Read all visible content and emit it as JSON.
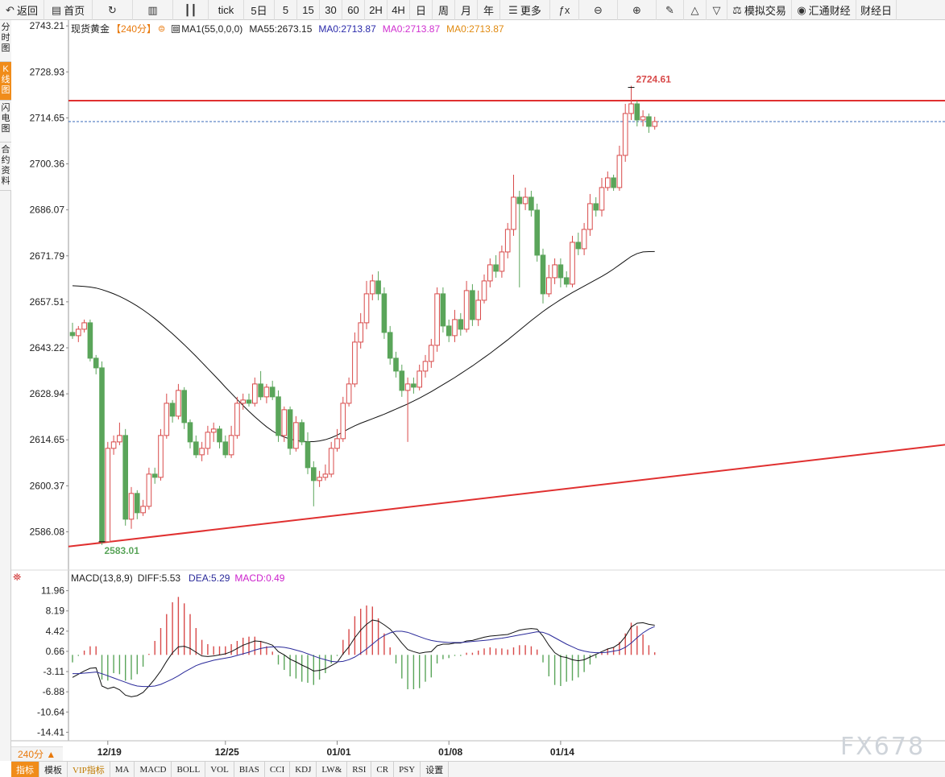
{
  "toolbar": {
    "items": [
      {
        "icon": "back-icon",
        "glyph": "↶",
        "label": "返回",
        "w": 55
      },
      {
        "icon": "home-icon",
        "glyph": "▤",
        "label": "首页",
        "w": 60
      },
      {
        "icon": "refresh-icon",
        "glyph": "↻",
        "label": "",
        "w": 50
      },
      {
        "icon": "bar-chart-icon",
        "glyph": "▥",
        "label": "",
        "w": 50
      },
      {
        "icon": "candlestick-icon",
        "glyph": "┃┃",
        "label": "",
        "w": 44
      },
      {
        "icon": "",
        "glyph": "",
        "label": "tick",
        "w": 44
      },
      {
        "icon": "",
        "glyph": "",
        "label": "5日",
        "w": 38
      },
      {
        "icon": "",
        "glyph": "",
        "label": "5",
        "w": 28
      },
      {
        "icon": "",
        "glyph": "",
        "label": "15",
        "w": 28
      },
      {
        "icon": "",
        "glyph": "",
        "label": "30",
        "w": 28
      },
      {
        "icon": "",
        "glyph": "",
        "label": "60",
        "w": 28
      },
      {
        "icon": "",
        "glyph": "",
        "label": "2H",
        "w": 28
      },
      {
        "icon": "",
        "glyph": "",
        "label": "4H",
        "w": 28
      },
      {
        "icon": "",
        "glyph": "",
        "label": "日",
        "w": 28
      },
      {
        "icon": "",
        "glyph": "",
        "label": "周",
        "w": 28
      },
      {
        "icon": "",
        "glyph": "",
        "label": "月",
        "w": 28
      },
      {
        "icon": "",
        "glyph": "",
        "label": "年",
        "w": 28
      },
      {
        "icon": "menu-icon",
        "glyph": "☰",
        "label": "更多",
        "w": 62
      },
      {
        "icon": "formula-icon",
        "glyph": "ƒx",
        "label": "",
        "w": 36
      },
      {
        "icon": "zoom-out-icon",
        "glyph": "⊖",
        "label": "",
        "w": 48
      },
      {
        "icon": "zoom-in-icon",
        "glyph": "⊕",
        "label": "",
        "w": 48
      },
      {
        "icon": "draw-line-icon",
        "glyph": "✎",
        "label": "",
        "w": 34
      },
      {
        "icon": "triangle-up-icon",
        "glyph": "△",
        "label": "",
        "w": 28
      },
      {
        "icon": "triangle-down-icon",
        "glyph": "▽",
        "label": "",
        "w": 26
      },
      {
        "icon": "simulated-trade-icon",
        "glyph": "⚖",
        "label": "模拟交易",
        "w": 80
      },
      {
        "icon": "news-icon",
        "glyph": "◉",
        "label": "汇通财经",
        "w": 80
      },
      {
        "icon": "",
        "glyph": "",
        "label": "财经日",
        "w": 50
      }
    ]
  },
  "left_tabs": [
    {
      "label": "分时图",
      "active": false
    },
    {
      "label": "K线图",
      "active": true
    },
    {
      "label": "闪电图",
      "active": false
    },
    {
      "label": "合约资料",
      "active": false
    }
  ],
  "legend": {
    "symbol": "现货黄金",
    "period": "【240分】",
    "ma_params": "MA1(55,0,0,0)",
    "ma55": "MA55:2673.15",
    "ma0_a": "MA0:2713.87",
    "ma0_b": "MA0:2713.87",
    "ma0_c": "MA0:2713.87"
  },
  "macd_legend": {
    "title": "MACD(13,8,9)",
    "diff": "DIFF:5.53",
    "dea": "DEA:5.29",
    "macd": "MACD:0.49"
  },
  "bottom_tabs": [
    "指标",
    "模板",
    "VIP指标",
    "MA",
    "MACD",
    "BOLL",
    "VOL",
    "BIAS",
    "CCI",
    "KDJ",
    "LW&",
    "RSI",
    "CR",
    "PSY",
    "设置"
  ],
  "period_selector": "240分 ▲",
  "watermark": "FX678",
  "colors": {
    "up": "#d84a4a",
    "down": "#5aa55a",
    "red_line": "#e03030",
    "ma": "#111111",
    "dea": "#2a2a9a",
    "macd_label": "#cc22cc",
    "accent": "#f08c1a"
  },
  "chart_data": {
    "type": "candlestick",
    "symbol": "现货黄金",
    "y_ticks": [
      "2743.21",
      "2728.93",
      "2714.65",
      "2700.36",
      "2686.07",
      "2671.79",
      "2657.51",
      "2643.22",
      "2628.94",
      "2614.65",
      "2600.37",
      "2586.08"
    ],
    "x_ticks": [
      "12/19",
      "12/25",
      "01/01",
      "01/08",
      "01/14"
    ],
    "ylim": [
      2578.7,
      2745
    ],
    "high_label": "2724.61",
    "low_label": "2583.01",
    "horizontal_line": 2720.0,
    "last_price_line": 2713.5,
    "trendline": {
      "from": [
        0,
        2581.5
      ],
      "to": [
        263,
        2637.5
      ]
    },
    "candles": [
      [
        2648,
        2647,
        2651,
        2646
      ],
      [
        2647,
        2649,
        2650,
        2645
      ],
      [
        2649,
        2651,
        2652,
        2648
      ],
      [
        2651,
        2640,
        2652,
        2639
      ],
      [
        2640,
        2637,
        2641,
        2635
      ],
      [
        2637,
        2583,
        2639,
        2582
      ],
      [
        2583,
        2612,
        2614,
        2583
      ],
      [
        2612,
        2614,
        2616,
        2610
      ],
      [
        2614,
        2616,
        2620,
        2613
      ],
      [
        2616,
        2590,
        2618,
        2588
      ],
      [
        2590,
        2598,
        2600,
        2587
      ],
      [
        2598,
        2592,
        2599,
        2590
      ],
      [
        2592,
        2594,
        2596,
        2591
      ],
      [
        2594,
        2604,
        2606,
        2593
      ],
      [
        2604,
        2603,
        2606,
        2601
      ],
      [
        2603,
        2616,
        2618,
        2602
      ],
      [
        2616,
        2626,
        2629,
        2615
      ],
      [
        2626,
        2622,
        2627,
        2620
      ],
      [
        2622,
        2630,
        2632,
        2621
      ],
      [
        2630,
        2620,
        2631,
        2618
      ],
      [
        2620,
        2614,
        2621,
        2612
      ],
      [
        2614,
        2610,
        2616,
        2609
      ],
      [
        2610,
        2612,
        2614,
        2608
      ],
      [
        2612,
        2617,
        2619,
        2610
      ],
      [
        2617,
        2618,
        2620,
        2614
      ],
      [
        2618,
        2614,
        2619,
        2612
      ],
      [
        2614,
        2610,
        2616,
        2609
      ],
      [
        2610,
        2616,
        2619,
        2609
      ],
      [
        2616,
        2626,
        2628,
        2615
      ],
      [
        2626,
        2627,
        2629,
        2624
      ],
      [
        2627,
        2626,
        2629,
        2625
      ],
      [
        2626,
        2632,
        2634,
        2625
      ],
      [
        2632,
        2628,
        2636,
        2627
      ],
      [
        2628,
        2631,
        2632,
        2626
      ],
      [
        2631,
        2628,
        2633,
        2627
      ],
      [
        2628,
        2616,
        2630,
        2614
      ],
      [
        2616,
        2624,
        2625,
        2614
      ],
      [
        2624,
        2612,
        2625,
        2610
      ],
      [
        2612,
        2620,
        2622,
        2611
      ],
      [
        2620,
        2614,
        2621,
        2613
      ],
      [
        2614,
        2606,
        2617,
        2604
      ],
      [
        2606,
        2602,
        2608,
        2594
      ],
      [
        2602,
        2603,
        2605,
        2600
      ],
      [
        2603,
        2604,
        2607,
        2602
      ],
      [
        2604,
        2612,
        2614,
        2603
      ],
      [
        2612,
        2615,
        2618,
        2611
      ],
      [
        2615,
        2626,
        2628,
        2614
      ],
      [
        2626,
        2632,
        2634,
        2625
      ],
      [
        2632,
        2645,
        2648,
        2631
      ],
      [
        2645,
        2651,
        2654,
        2643
      ],
      [
        2651,
        2660,
        2664,
        2649
      ],
      [
        2660,
        2664,
        2666,
        2658
      ],
      [
        2664,
        2660,
        2667,
        2658
      ],
      [
        2660,
        2648,
        2662,
        2646
      ],
      [
        2648,
        2640,
        2650,
        2638
      ],
      [
        2640,
        2636,
        2642,
        2634
      ],
      [
        2636,
        2630,
        2638,
        2628
      ],
      [
        2630,
        2632,
        2634,
        2614
      ],
      [
        2632,
        2631,
        2634,
        2629
      ],
      [
        2631,
        2636,
        2638,
        2630
      ],
      [
        2636,
        2639,
        2641,
        2634
      ],
      [
        2639,
        2644,
        2646,
        2637
      ],
      [
        2644,
        2660,
        2662,
        2642
      ],
      [
        2660,
        2650,
        2662,
        2648
      ],
      [
        2650,
        2647,
        2652,
        2645
      ],
      [
        2647,
        2652,
        2655,
        2645
      ],
      [
        2652,
        2649,
        2654,
        2647
      ],
      [
        2649,
        2661,
        2664,
        2648
      ],
      [
        2661,
        2652,
        2663,
        2650
      ],
      [
        2652,
        2658,
        2661,
        2650
      ],
      [
        2658,
        2664,
        2666,
        2657
      ],
      [
        2664,
        2669,
        2671,
        2662
      ],
      [
        2669,
        2667,
        2672,
        2665
      ],
      [
        2667,
        2673,
        2675,
        2665
      ],
      [
        2673,
        2680,
        2682,
        2671
      ],
      [
        2680,
        2690,
        2697,
        2678
      ],
      [
        2690,
        2688,
        2692,
        2662
      ],
      [
        2688,
        2690,
        2693,
        2686
      ],
      [
        2690,
        2686,
        2692,
        2684
      ],
      [
        2686,
        2672,
        2688,
        2670
      ],
      [
        2672,
        2660,
        2674,
        2657
      ],
      [
        2660,
        2665,
        2669,
        2659
      ],
      [
        2665,
        2669,
        2671,
        2663
      ],
      [
        2669,
        2665,
        2671,
        2662
      ],
      [
        2665,
        2663,
        2667,
        2662
      ],
      [
        2663,
        2676,
        2678,
        2662
      ],
      [
        2676,
        2674,
        2679,
        2672
      ],
      [
        2674,
        2680,
        2682,
        2672
      ],
      [
        2680,
        2688,
        2691,
        2678
      ],
      [
        2688,
        2686,
        2690,
        2684
      ],
      [
        2686,
        2693,
        2696,
        2684
      ],
      [
        2693,
        2696,
        2698,
        2692
      ],
      [
        2696,
        2693,
        2697,
        2692
      ],
      [
        2693,
        2703,
        2706,
        2692
      ],
      [
        2703,
        2716,
        2719,
        2701
      ],
      [
        2716,
        2719,
        2724.61,
        2714
      ],
      [
        2719,
        2714,
        2720,
        2712
      ],
      [
        2714,
        2715,
        2717,
        2712
      ],
      [
        2715,
        2712,
        2716,
        2710
      ],
      [
        2712,
        2713.5,
        2715,
        2711
      ]
    ],
    "ma55": [
      2662.5,
      2662.4,
      2662.3,
      2662.1,
      2661.8,
      2661.3,
      2660.7,
      2660.0,
      2659.2,
      2658.3,
      2657.3,
      2656.2,
      2655.0,
      2653.7,
      2652.3,
      2650.8,
      2649.2,
      2647.6,
      2645.9,
      2644.2,
      2642.4,
      2640.6,
      2638.7,
      2636.8,
      2634.9,
      2633.0,
      2631.0,
      2629.1,
      2627.2,
      2625.3,
      2623.5,
      2621.8,
      2620.2,
      2618.7,
      2617.4,
      2616.3,
      2615.5,
      2614.9,
      2614.5,
      2614.2,
      2614.1,
      2614.1,
      2614.3,
      2614.7,
      2615.3,
      2616.1,
      2617.1,
      2618.1,
      2619.0,
      2619.8,
      2620.5,
      2621.2,
      2621.9,
      2622.6,
      2623.4,
      2624.2,
      2625.0,
      2625.8,
      2626.7,
      2627.6,
      2628.6,
      2629.6,
      2630.7,
      2631.8,
      2632.9,
      2634.0,
      2635.2,
      2636.4,
      2637.6,
      2638.9,
      2640.2,
      2641.5,
      2642.9,
      2644.3,
      2645.7,
      2647.2,
      2648.7,
      2650.2,
      2651.7,
      2653.1,
      2654.5,
      2655.8,
      2657.0,
      2658.2,
      2659.3,
      2660.4,
      2661.4,
      2662.4,
      2663.4,
      2664.4,
      2665.4,
      2666.5,
      2667.7,
      2669.0,
      2670.3,
      2671.6,
      2672.5,
      2673.0,
      2673.1,
      2673.15
    ],
    "macd": {
      "ylim": [
        -16,
        14
      ],
      "y_ticks": [
        "11.96",
        "8.19",
        "4.42",
        "0.66",
        "-3.11",
        "-6.88",
        "-10.64",
        "-14.41"
      ],
      "diff": [
        -4.2,
        -3.6,
        -3.0,
        -2.5,
        -2.4,
        -5.8,
        -6.3,
        -6.0,
        -6.5,
        -7.5,
        -7.8,
        -7.6,
        -7.0,
        -5.8,
        -4.5,
        -3.0,
        -1.2,
        0.4,
        1.5,
        1.6,
        1.2,
        0.5,
        -0.2,
        -0.3,
        -0.2,
        0.0,
        0.2,
        0.6,
        1.2,
        1.8,
        2.2,
        2.6,
        2.5,
        2.2,
        1.8,
        0.6,
        0.0,
        -0.8,
        -1.3,
        -1.9,
        -2.4,
        -3.0,
        -2.9,
        -2.6,
        -2.0,
        -1.4,
        0.2,
        1.5,
        3.2,
        4.6,
        5.7,
        6.5,
        6.3,
        5.6,
        4.8,
        3.6,
        2.2,
        1.0,
        0.6,
        0.3,
        0.5,
        0.6,
        1.7,
        2.0,
        2.0,
        2.2,
        2.2,
        2.6,
        2.7,
        3.0,
        3.3,
        3.5,
        3.6,
        3.7,
        3.8,
        4.2,
        4.6,
        4.8,
        4.9,
        4.8,
        3.5,
        1.8,
        0.4,
        -0.3,
        -0.5,
        -0.9,
        -1.1,
        -0.9,
        -0.4,
        0.1,
        0.6,
        1.1,
        1.4,
        2.1,
        3.4,
        5.2,
        5.9,
        6.0,
        5.7,
        5.53
      ],
      "dea": [
        -3.5,
        -3.5,
        -3.4,
        -3.3,
        -3.2,
        -3.5,
        -3.9,
        -4.3,
        -4.7,
        -5.1,
        -5.5,
        -5.8,
        -5.9,
        -5.9,
        -5.8,
        -5.5,
        -5.0,
        -4.5,
        -3.9,
        -3.2,
        -2.6,
        -2.0,
        -1.6,
        -1.3,
        -1.0,
        -0.8,
        -0.6,
        -0.4,
        -0.1,
        0.2,
        0.5,
        0.9,
        1.2,
        1.4,
        1.5,
        1.5,
        1.4,
        1.2,
        0.9,
        0.6,
        0.2,
        -0.2,
        -0.6,
        -0.9,
        -1.2,
        -1.3,
        -1.2,
        -0.9,
        -0.4,
        0.3,
        1.1,
        2.0,
        2.9,
        3.6,
        4.1,
        4.4,
        4.4,
        4.2,
        3.8,
        3.4,
        3.0,
        2.7,
        2.5,
        2.4,
        2.3,
        2.3,
        2.3,
        2.4,
        2.5,
        2.6,
        2.7,
        2.8,
        3.0,
        3.1,
        3.3,
        3.5,
        3.7,
        3.9,
        4.1,
        4.3,
        4.2,
        3.8,
        3.2,
        2.6,
        2.0,
        1.5,
        1.0,
        0.7,
        0.5,
        0.4,
        0.4,
        0.5,
        0.7,
        0.9,
        1.4,
        2.2,
        3.2,
        4.1,
        4.8,
        5.29
      ]
    }
  }
}
